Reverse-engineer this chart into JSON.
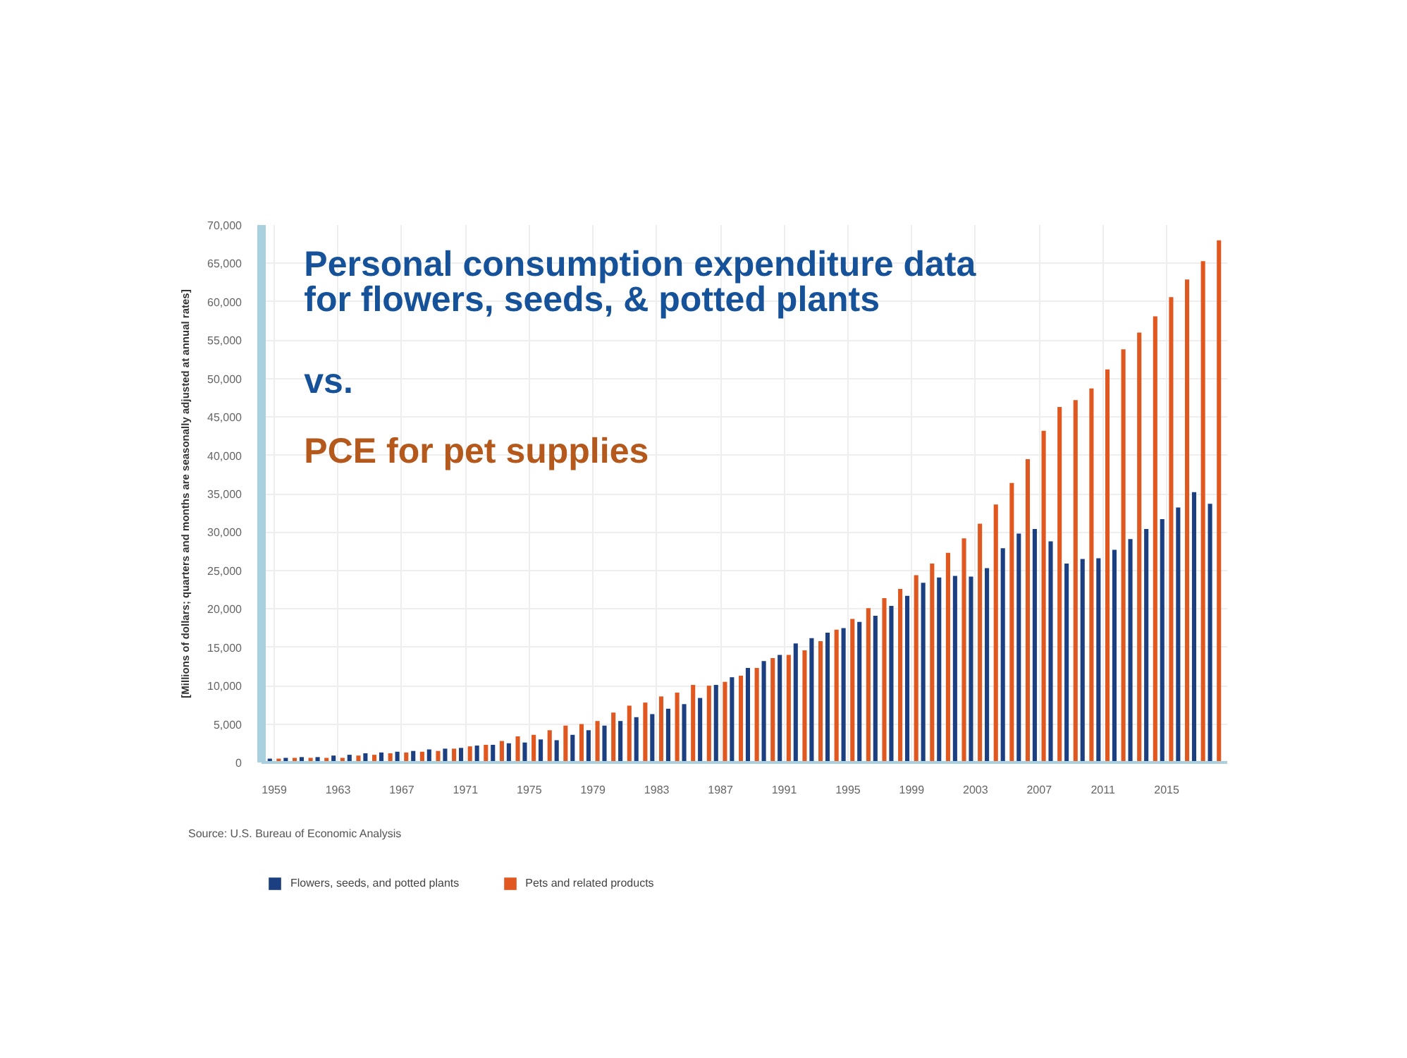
{
  "chart_data": {
    "type": "bar",
    "title": "Personal consumption expenditure data\nfor flowers, seeds, & potted plants",
    "subtitle": "vs.",
    "annotations": [
      "PCE for pet supplies",
      "Source: U.S. Bureau of Economic Analysis"
    ],
    "ylabel": "[Millions of dollars; quarters and months are seasonally adjusted at annual rates]",
    "x": [
      1959,
      1960,
      1961,
      1962,
      1963,
      1964,
      1965,
      1966,
      1967,
      1968,
      1969,
      1970,
      1971,
      1972,
      1973,
      1974,
      1975,
      1976,
      1977,
      1978,
      1979,
      1980,
      1981,
      1982,
      1983,
      1984,
      1985,
      1986,
      1987,
      1988,
      1989,
      1990,
      1991,
      1992,
      1993,
      1994,
      1995,
      1996,
      1997,
      1998,
      1999,
      2000,
      2001,
      2002,
      2003,
      2004,
      2005,
      2006,
      2007,
      2008,
      2009,
      2010,
      2011,
      2012,
      2013,
      2014,
      2015,
      2016,
      2017,
      2018
    ],
    "series": [
      {
        "name": "Flowers, seeds, and potted plants",
        "color": "#1b3f80",
        "values": [
          500,
          600,
          700,
          700,
          900,
          1000,
          1200,
          1300,
          1400,
          1500,
          1700,
          1800,
          1900,
          2200,
          2300,
          2500,
          2600,
          3000,
          2900,
          3600,
          4200,
          4800,
          5400,
          5900,
          6300,
          7000,
          7600,
          8400,
          10100,
          11100,
          12300,
          13200,
          14000,
          15500,
          16200,
          16900,
          17500,
          18300,
          19100,
          20400,
          21700,
          23400,
          24100,
          24300,
          24200,
          25300,
          27900,
          29800,
          30400,
          28800,
          25900,
          26500,
          26600,
          27700,
          29100,
          30400,
          31700,
          33200,
          35200,
          33700
        ]
      },
      {
        "name": "Pets and related products",
        "color": "#e0571f",
        "values": [
          500,
          600,
          600,
          600,
          600,
          900,
          1000,
          1200,
          1300,
          1400,
          1500,
          1800,
          2100,
          2300,
          2800,
          3400,
          3600,
          4200,
          4800,
          5000,
          5400,
          6500,
          7400,
          7800,
          8600,
          9100,
          10100,
          10000,
          10500,
          11300,
          12300,
          13600,
          14000,
          14600,
          15800,
          17300,
          18700,
          20100,
          21400,
          22600,
          24400,
          25900,
          27300,
          29200,
          31100,
          33600,
          36400,
          39500,
          43200,
          46300,
          47200,
          48700,
          51200,
          53800,
          56000,
          58100,
          60600,
          62900,
          65300,
          68000
        ]
      }
    ],
    "xlim": [
      1958.2,
      2018.8
    ],
    "xticks": [
      1959,
      1963,
      1967,
      1971,
      1975,
      1979,
      1983,
      1987,
      1991,
      1995,
      1999,
      2003,
      2007,
      2011,
      2015
    ],
    "ylim": [
      0,
      70000
    ],
    "yticks": [
      0,
      {
        "value": 5000,
        "label": "5,000"
      },
      {
        "value": 10000,
        "label": "10,000"
      },
      {
        "value": 15000,
        "label": "15,000"
      },
      {
        "value": 20000,
        "label": "20,000"
      },
      {
        "value": 25000,
        "label": "25,000"
      },
      {
        "value": 30000,
        "label": "30,000"
      },
      {
        "value": 35000,
        "label": "35,000"
      },
      {
        "value": 40000,
        "label": "40,000"
      },
      {
        "value": 45000,
        "label": "45,000"
      },
      {
        "value": 50000,
        "label": "50,000"
      },
      {
        "value": 55000,
        "label": "55,000"
      },
      {
        "value": 60000,
        "label": "60,000"
      },
      {
        "value": 65000,
        "label": "65,000"
      },
      {
        "value": 70000,
        "label": "70,000"
      }
    ],
    "grid": true,
    "legend": "bottom"
  }
}
